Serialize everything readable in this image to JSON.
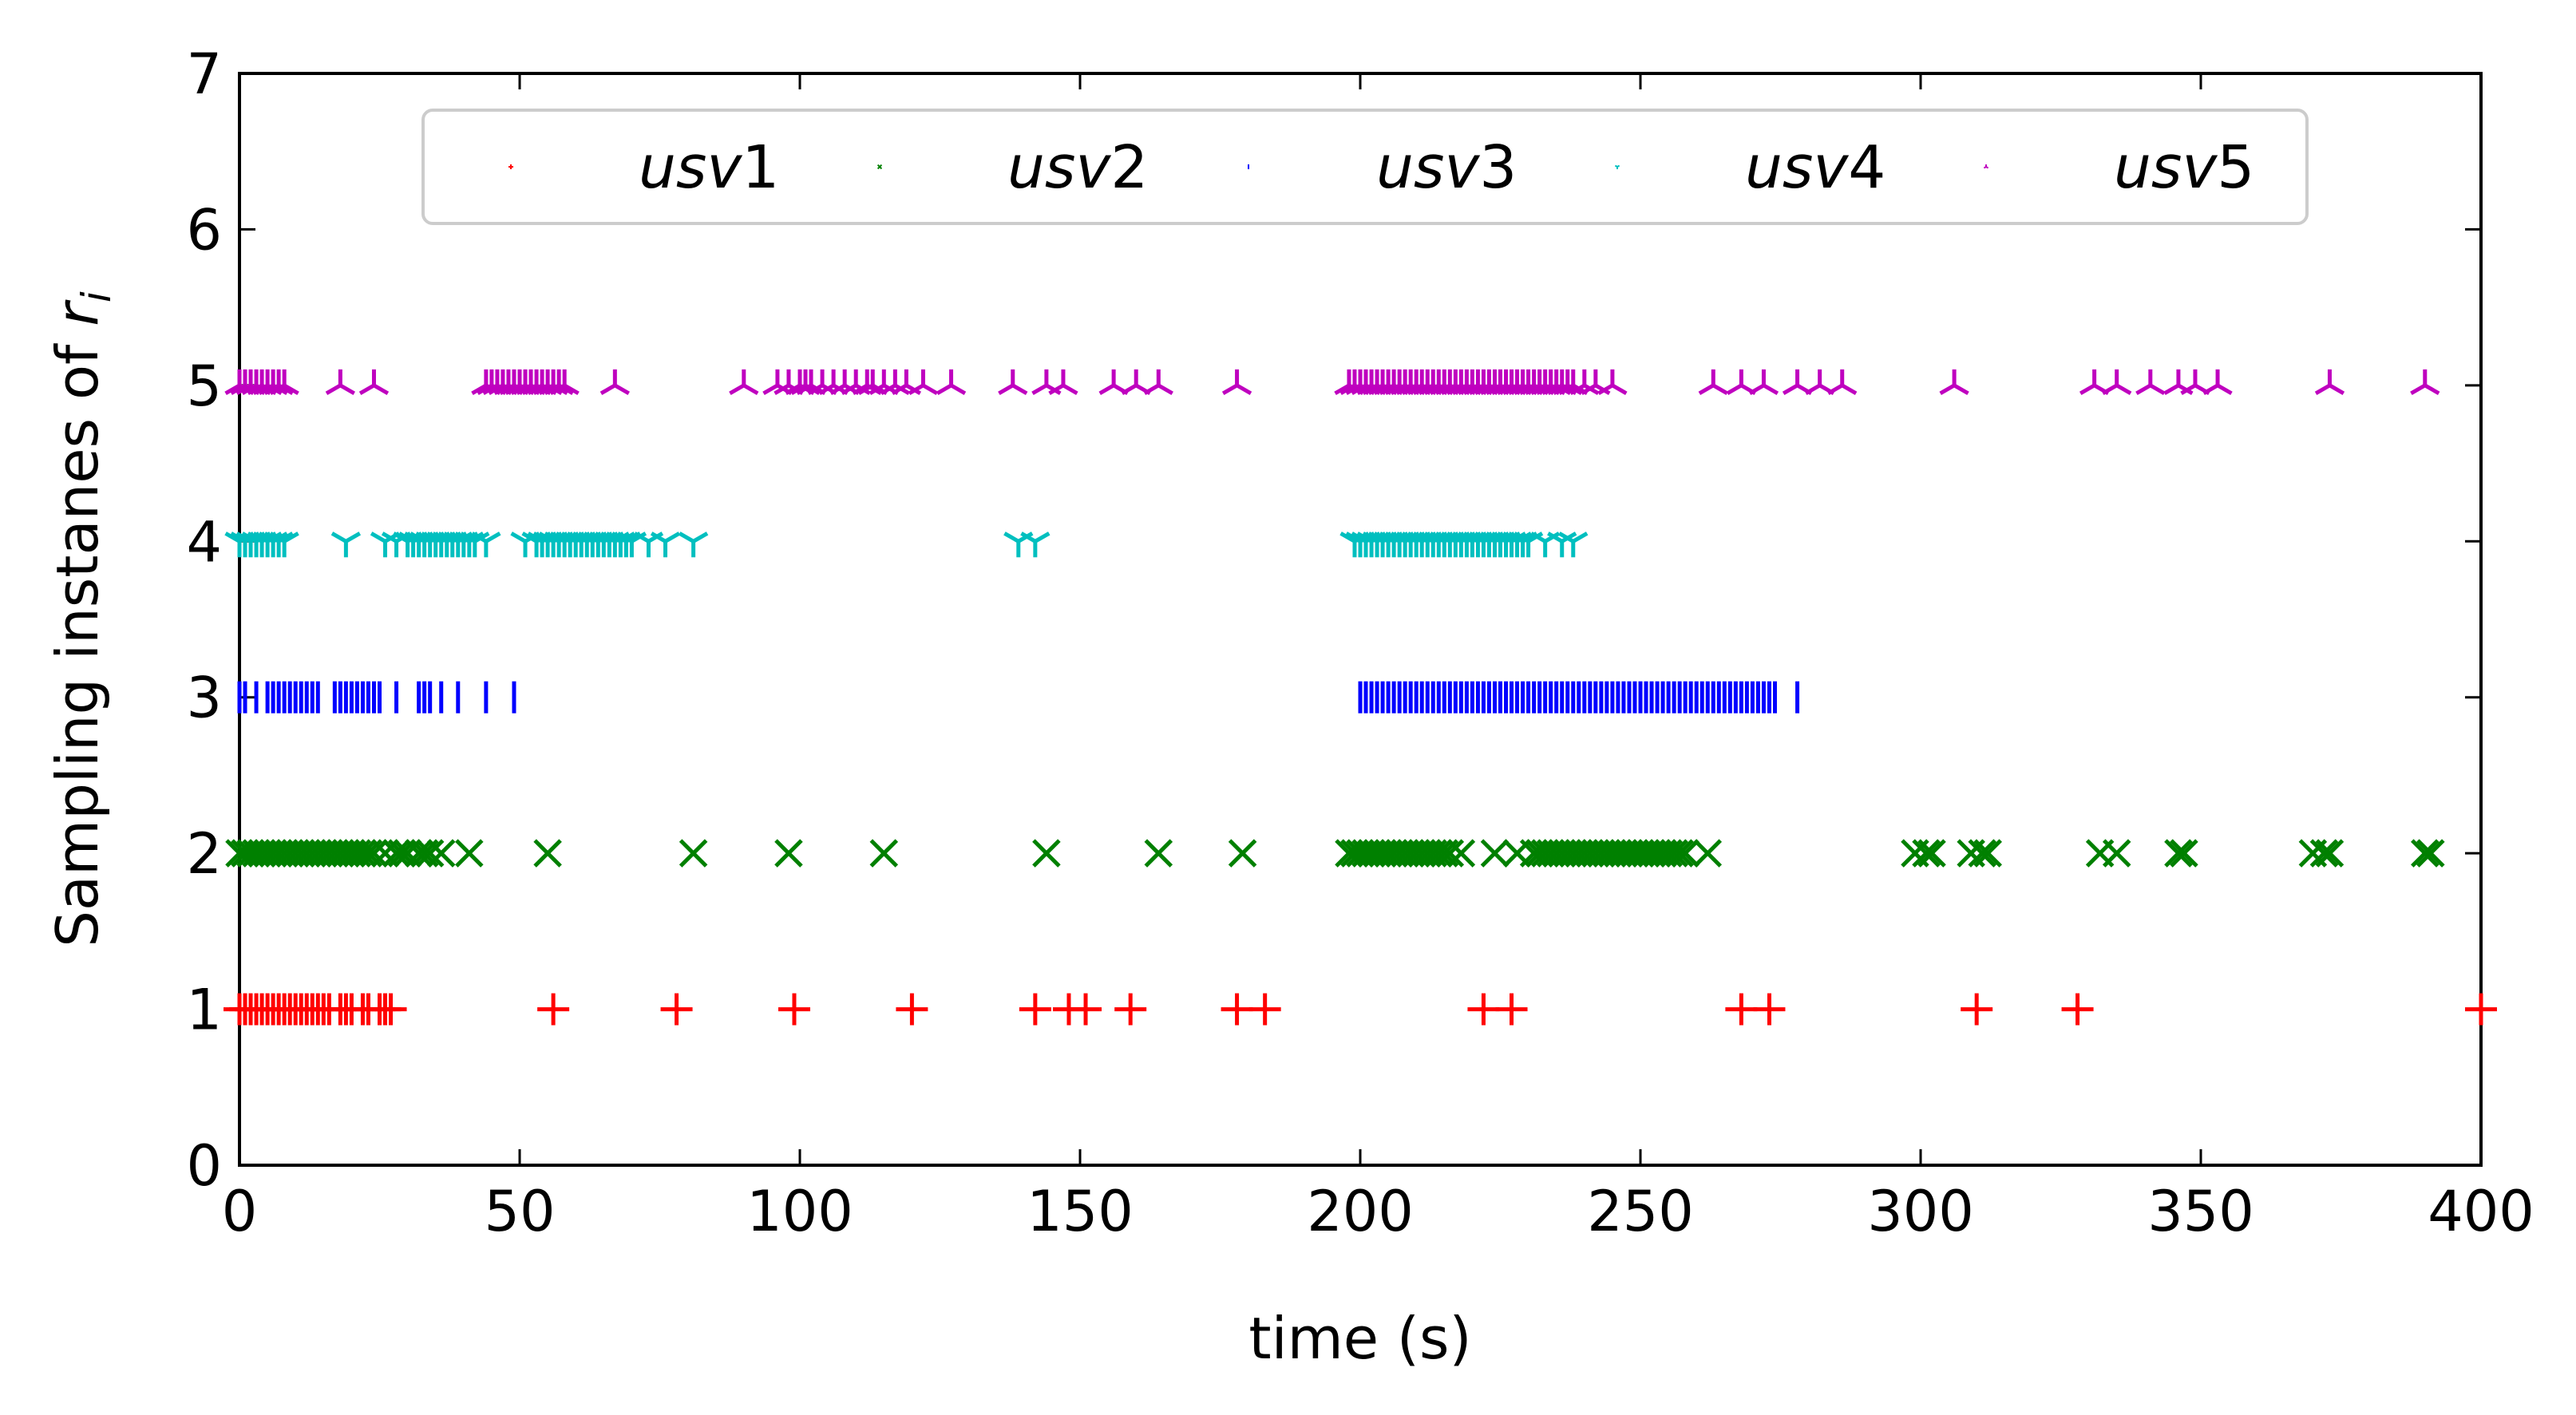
{
  "chart_data": {
    "type": "scatter",
    "title": "",
    "xlabel": "time (s)",
    "ylabel_prefix": "Sampling instanes of ",
    "ylabel_var": "r",
    "ylabel_sub": "i",
    "xlim": [
      0,
      400
    ],
    "ylim": [
      0,
      7
    ],
    "xticks": [
      0,
      50,
      100,
      150,
      200,
      250,
      300,
      350,
      400
    ],
    "yticks": [
      0,
      1,
      2,
      3,
      4,
      5,
      6,
      7
    ],
    "grid": false,
    "legend_position": "top-center",
    "legend_columns": 5,
    "series": [
      {
        "name": "usv1",
        "name_italic": "usv",
        "name_num": "1",
        "marker": "plus",
        "color": "#ff0000",
        "y": 1,
        "x": [
          0,
          1,
          2,
          3,
          4,
          5,
          6,
          7,
          8,
          9,
          10,
          11,
          12,
          13,
          14,
          15,
          16,
          18,
          19,
          20,
          22,
          23,
          25,
          26,
          27,
          56,
          78,
          99,
          120,
          142,
          148,
          151,
          159,
          178,
          183,
          222,
          227,
          268,
          273,
          310,
          328,
          400
        ]
      },
      {
        "name": "usv2",
        "name_italic": "usv",
        "name_num": "2",
        "marker": "x",
        "color": "#008000",
        "y": 2,
        "x": [
          0,
          1,
          2,
          3,
          4,
          5,
          6,
          7,
          8,
          9,
          10,
          11,
          12,
          13,
          14,
          15,
          16,
          17,
          18,
          19,
          20,
          21,
          22,
          23,
          24,
          26,
          28,
          29,
          30,
          32,
          33,
          34,
          36,
          41,
          55,
          81,
          98,
          115,
          144,
          164,
          179,
          198,
          199,
          200,
          201,
          202,
          203,
          204,
          205,
          206,
          207,
          208,
          209,
          210,
          211,
          212,
          213,
          214,
          215,
          216,
          218,
          224,
          228,
          231,
          232,
          233,
          234,
          235,
          236,
          237,
          238,
          239,
          240,
          241,
          242,
          243,
          244,
          245,
          246,
          247,
          248,
          249,
          250,
          251,
          252,
          253,
          254,
          255,
          256,
          257,
          258,
          262,
          299,
          301,
          302,
          309,
          311,
          312,
          332,
          335,
          346,
          347,
          370,
          372,
          373,
          390,
          391
        ]
      },
      {
        "name": "usv3",
        "name_italic": "usv",
        "name_num": "3",
        "marker": "vline",
        "color": "#0000ff",
        "y": 3,
        "x": [
          0,
          1,
          3,
          5,
          6,
          7,
          8,
          9,
          10,
          11,
          12,
          13,
          14,
          17,
          18,
          19,
          20,
          21,
          22,
          23,
          24,
          25,
          28,
          32,
          33,
          34,
          36,
          39,
          44,
          49,
          200,
          201,
          202,
          203,
          204,
          205,
          206,
          207,
          208,
          209,
          210,
          211,
          212,
          213,
          214,
          215,
          216,
          217,
          218,
          219,
          220,
          221,
          222,
          223,
          224,
          225,
          226,
          227,
          228,
          229,
          230,
          231,
          232,
          233,
          234,
          235,
          236,
          237,
          238,
          239,
          240,
          241,
          242,
          243,
          244,
          245,
          246,
          247,
          248,
          249,
          250,
          251,
          252,
          253,
          254,
          255,
          256,
          257,
          258,
          259,
          260,
          261,
          262,
          263,
          264,
          265,
          266,
          267,
          268,
          269,
          270,
          271,
          272,
          273,
          274,
          278
        ]
      },
      {
        "name": "usv4",
        "name_italic": "usv",
        "name_num": "4",
        "marker": "tri_down",
        "color": "#00bfbf",
        "y": 4,
        "x": [
          0,
          1,
          2,
          3,
          4,
          5,
          6,
          7,
          8,
          19,
          26,
          28,
          30,
          31,
          32,
          33,
          34,
          35,
          36,
          37,
          38,
          39,
          40,
          41,
          42,
          44,
          51,
          53,
          54,
          55,
          56,
          57,
          58,
          59,
          60,
          61,
          62,
          63,
          64,
          65,
          66,
          67,
          68,
          69,
          70,
          73,
          76,
          81,
          139,
          142,
          199,
          200,
          201,
          202,
          203,
          204,
          205,
          206,
          207,
          208,
          209,
          210,
          211,
          212,
          213,
          214,
          215,
          216,
          217,
          218,
          219,
          220,
          221,
          222,
          223,
          224,
          225,
          226,
          227,
          228,
          229,
          230,
          233,
          236,
          238
        ]
      },
      {
        "name": "usv5",
        "name_italic": "usv",
        "name_num": "5",
        "marker": "tri_up",
        "color": "#bf00bf",
        "y": 5,
        "x": [
          0,
          1,
          2,
          3,
          4,
          5,
          6,
          7,
          8,
          18,
          24,
          44,
          45,
          46,
          47,
          48,
          49,
          50,
          51,
          52,
          53,
          54,
          55,
          56,
          57,
          58,
          67,
          90,
          96,
          98,
          100,
          101,
          102,
          104,
          106,
          108,
          110,
          112,
          113,
          115,
          117,
          119,
          122,
          127,
          138,
          144,
          147,
          156,
          160,
          164,
          178,
          198,
          199,
          200,
          201,
          202,
          203,
          204,
          205,
          206,
          207,
          208,
          209,
          210,
          211,
          212,
          213,
          214,
          215,
          216,
          217,
          218,
          219,
          220,
          221,
          222,
          223,
          224,
          225,
          226,
          227,
          228,
          229,
          230,
          231,
          232,
          233,
          234,
          235,
          236,
          237,
          238,
          240,
          242,
          245,
          263,
          268,
          272,
          278,
          282,
          286,
          306,
          331,
          335,
          341,
          346,
          349,
          353,
          373,
          390
        ]
      }
    ]
  }
}
